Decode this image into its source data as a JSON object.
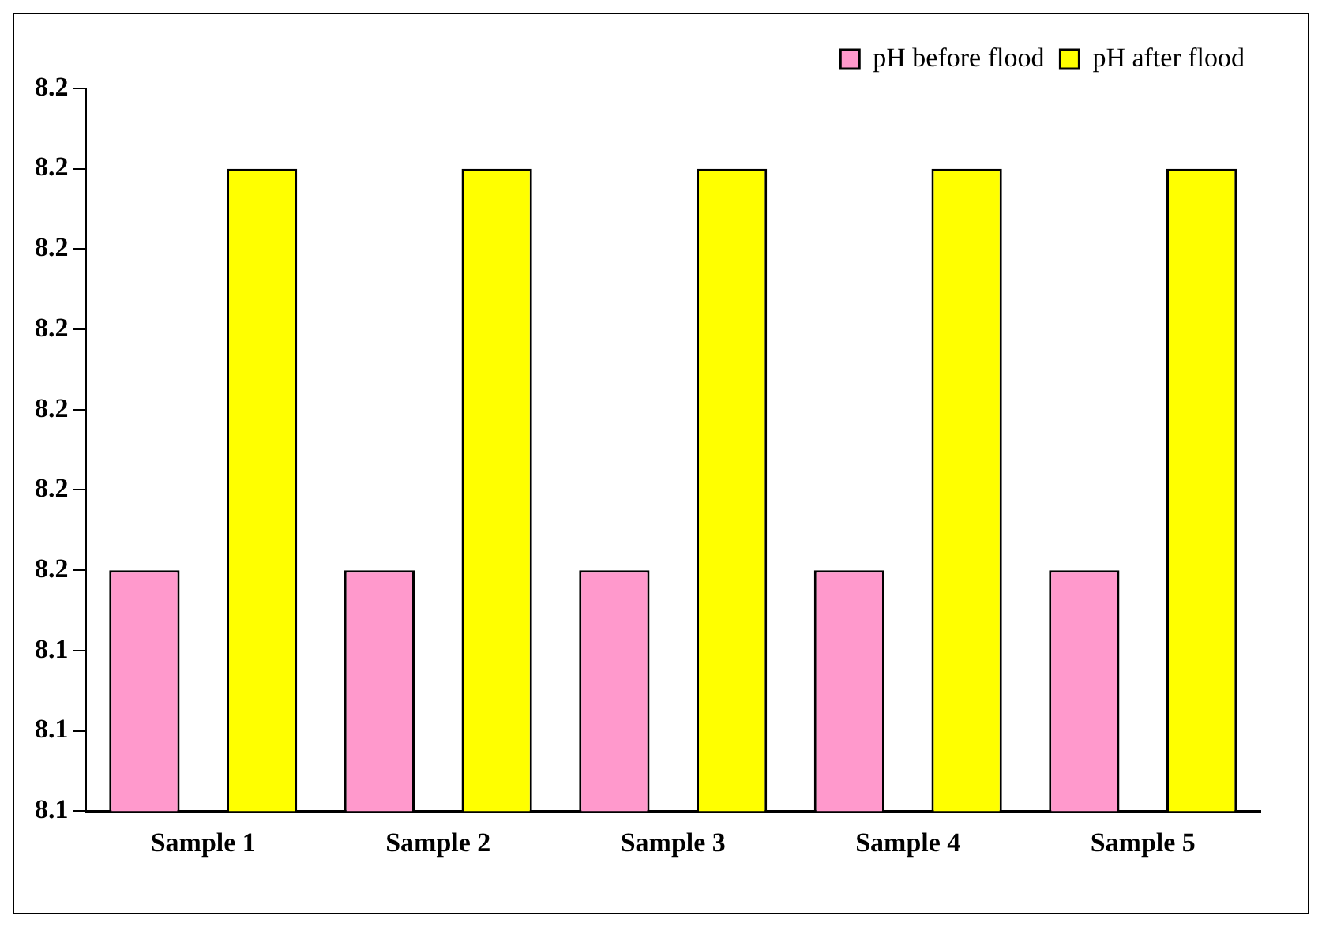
{
  "chart_data": {
    "type": "bar",
    "categories": [
      "Sample 1",
      "Sample 2",
      "Sample 3",
      "Sample 4",
      "Sample 5"
    ],
    "series": [
      {
        "name": "pH before flood",
        "color": "#ff99cc",
        "values": [
          8.15,
          8.15,
          8.15,
          8.15,
          8.15
        ]
      },
      {
        "name": "pH after flood",
        "color": "#ffff00",
        "values": [
          8.2,
          8.2,
          8.2,
          8.2,
          8.2
        ]
      }
    ],
    "ylim": [
      8.12,
      8.21
    ],
    "yticks": [
      {
        "value": 8.12,
        "label": "8.1"
      },
      {
        "value": 8.13,
        "label": "8.1"
      },
      {
        "value": 8.14,
        "label": "8.1"
      },
      {
        "value": 8.15,
        "label": "8.2"
      },
      {
        "value": 8.16,
        "label": "8.2"
      },
      {
        "value": 8.17,
        "label": "8.2"
      },
      {
        "value": 8.18,
        "label": "8.2"
      },
      {
        "value": 8.19,
        "label": "8.2"
      },
      {
        "value": 8.2,
        "label": "8.2"
      },
      {
        "value": 8.21,
        "label": "8.2"
      }
    ],
    "grid": false,
    "legend": "top right"
  }
}
